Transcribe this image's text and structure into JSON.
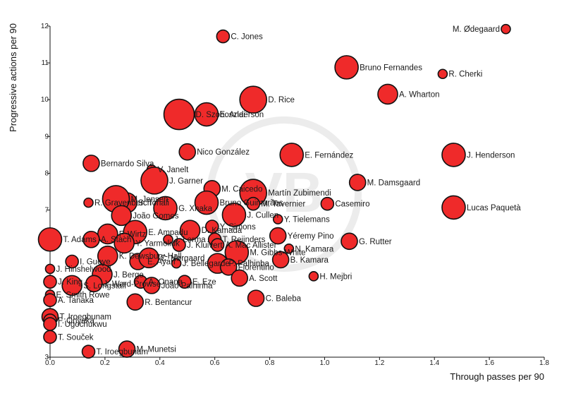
{
  "chart_data": {
    "type": "scatter",
    "title": "",
    "xlabel": "Through passes per 90",
    "ylabel": "Progressive actions per 90",
    "xlim": [
      0.0,
      1.8
    ],
    "ylim": [
      3,
      12
    ],
    "x_ticks": [
      "0.0",
      "0.2",
      "0.4",
      "0.6",
      "0.8",
      "1.0",
      "1.2",
      "1.4",
      "1.6",
      "1.8"
    ],
    "y_ticks": [
      "3",
      "4",
      "5",
      "6",
      "7",
      "8",
      "9",
      "10",
      "11",
      "12"
    ],
    "watermark_text": "VB",
    "points": [
      {
        "name": "M. Ødegaard",
        "x": 1.66,
        "y": 11.92,
        "size": 1
      },
      {
        "name": "C. Jones",
        "x": 0.63,
        "y": 11.72,
        "size": 2
      },
      {
        "name": "Bruno Fernandes",
        "x": 1.08,
        "y": 10.88,
        "size": 5
      },
      {
        "name": "R. Cherki",
        "x": 1.43,
        "y": 10.7,
        "size": 1
      },
      {
        "name": "A. Wharton",
        "x": 1.23,
        "y": 10.15,
        "size": 4
      },
      {
        "name": "D. Rice",
        "x": 0.74,
        "y": 10.0,
        "size": 6
      },
      {
        "name": "D. Szoboszlai",
        "x": 0.47,
        "y": 9.6,
        "size": 7
      },
      {
        "name": "E. Anderson",
        "x": 0.57,
        "y": 9.6,
        "size": 5
      },
      {
        "name": "Nico González",
        "x": 0.5,
        "y": 8.58,
        "size": 3
      },
      {
        "name": "E. Fernández",
        "x": 0.88,
        "y": 8.5,
        "size": 5
      },
      {
        "name": "J. Henderson",
        "x": 1.47,
        "y": 8.5,
        "size": 5
      },
      {
        "name": "Bernardo Silva",
        "x": 0.15,
        "y": 8.27,
        "size": 3
      },
      {
        "name": "V. Janelt",
        "x": 0.37,
        "y": 8.1,
        "size": 1
      },
      {
        "name": "J. Garner",
        "x": 0.38,
        "y": 7.8,
        "size": 6
      },
      {
        "name": "M. Damsgaard",
        "x": 1.12,
        "y": 7.75,
        "size": 3
      },
      {
        "name": "M. Caicedo",
        "x": 0.59,
        "y": 7.58,
        "size": 3
      },
      {
        "name": "Martín Zubimendi",
        "x": 0.74,
        "y": 7.47,
        "size": 6
      },
      {
        "name": "R. Gravenberch",
        "x": 0.14,
        "y": 7.2,
        "size": 1
      },
      {
        "name": "S. Tonali",
        "x": 0.28,
        "y": 7.2,
        "size": 4
      },
      {
        "name": "Bruno Guimarães",
        "x": 0.57,
        "y": 7.2,
        "size": 5
      },
      {
        "name": "M. Tavernier",
        "x": 0.74,
        "y": 7.17,
        "size": 2
      },
      {
        "name": "Casemiro",
        "x": 1.01,
        "y": 7.17,
        "size": 2
      },
      {
        "name": "Lucas Paquetà",
        "x": 1.47,
        "y": 7.07,
        "size": 5
      },
      {
        "name": "M. Jensen",
        "x": 0.24,
        "y": 7.3,
        "size": 6
      },
      {
        "name": "G. Xhaka",
        "x": 0.42,
        "y": 7.05,
        "size": 5
      },
      {
        "name": "João Gomes",
        "x": 0.26,
        "y": 6.85,
        "size": 4
      },
      {
        "name": "J. Cullen",
        "x": 0.67,
        "y": 6.87,
        "size": 5
      },
      {
        "name": "Y. Tielemans",
        "x": 0.83,
        "y": 6.75,
        "size": 1
      },
      {
        "name": "F. Wirtz",
        "x": 0.21,
        "y": 6.35,
        "size": 4
      },
      {
        "name": "E. Ampadu",
        "x": 0.31,
        "y": 6.4,
        "size": 5
      },
      {
        "name": "D. Kamada",
        "x": 0.51,
        "y": 6.45,
        "size": 4
      },
      {
        "name": "Y. Simons",
        "x": 0.59,
        "y": 6.55,
        "size": 2
      },
      {
        "name": "Yéremy Pino",
        "x": 0.83,
        "y": 6.3,
        "size": 3
      },
      {
        "name": "T. Adams",
        "x": 0.0,
        "y": 6.2,
        "size": 5
      },
      {
        "name": "A. Stach",
        "x": 0.15,
        "y": 6.2,
        "size": 3
      },
      {
        "name": "Y. Yarmoliuk",
        "x": 0.27,
        "y": 6.1,
        "size": 4
      },
      {
        "name": "J. Lerma",
        "x": 0.43,
        "y": 6.2,
        "size": 1
      },
      {
        "name": "J. Kluivert",
        "x": 0.47,
        "y": 6.05,
        "size": 2
      },
      {
        "name": "T. Reijnders",
        "x": 0.6,
        "y": 6.2,
        "size": 2
      },
      {
        "name": "A. Mac Allister",
        "x": 0.61,
        "y": 6.05,
        "size": 2
      },
      {
        "name": "G. Rutter",
        "x": 1.09,
        "y": 6.15,
        "size": 3
      },
      {
        "name": "M. Gibbs-White",
        "x": 0.68,
        "y": 5.85,
        "size": 5
      },
      {
        "name": "N. Kamara",
        "x": 0.87,
        "y": 5.95,
        "size": 1
      },
      {
        "name": "K. Dewsbury-Hall",
        "x": 0.21,
        "y": 5.75,
        "size": 4
      },
      {
        "name": "I. Gueye",
        "x": 0.08,
        "y": 5.6,
        "size": 2
      },
      {
        "name": "E. Ayari",
        "x": 0.32,
        "y": 5.6,
        "size": 3
      },
      {
        "name": "C. Nørgaard",
        "x": 0.36,
        "y": 5.7,
        "size": 4
      },
      {
        "name": "J. Hinshelwood",
        "x": 0.0,
        "y": 5.4,
        "size": 1
      },
      {
        "name": "J. Bellegarde",
        "x": 0.46,
        "y": 5.55,
        "size": 1
      },
      {
        "name": "P. Palhinha",
        "x": 0.61,
        "y": 5.55,
        "size": 4
      },
      {
        "name": "Florentino",
        "x": 0.65,
        "y": 5.45,
        "size": 3
      },
      {
        "name": "B. Kamara",
        "x": 0.84,
        "y": 5.65,
        "size": 3
      },
      {
        "name": "J. Berge",
        "x": 0.19,
        "y": 5.25,
        "size": 4
      },
      {
        "name": "H. Mejbri",
        "x": 0.96,
        "y": 5.2,
        "size": 1
      },
      {
        "name": "A. Scott",
        "x": 0.69,
        "y": 5.15,
        "size": 3
      },
      {
        "name": "A. Onana",
        "x": 0.33,
        "y": 5.05,
        "size": 2
      },
      {
        "name": "E. Eze",
        "x": 0.49,
        "y": 5.05,
        "size": 2
      },
      {
        "name": "J. King",
        "x": 0.0,
        "y": 5.05,
        "size": 2
      },
      {
        "name": "S. Longstaff",
        "x": 0.08,
        "y": 4.95,
        "size": 4
      },
      {
        "name": "J. Ward-Prowse",
        "x": 0.16,
        "y": 5.0,
        "size": 3
      },
      {
        "name": "João Palhinha",
        "x": 0.37,
        "y": 4.95,
        "size": 3
      },
      {
        "name": "E. Smith Rowe",
        "x": 0.0,
        "y": 4.7,
        "size": 1
      },
      {
        "name": "A. Tanaka",
        "x": 0.0,
        "y": 4.55,
        "size": 2
      },
      {
        "name": "C. Baleba",
        "x": 0.75,
        "y": 4.6,
        "size": 3
      },
      {
        "name": "R. Bentancur",
        "x": 0.31,
        "y": 4.5,
        "size": 3
      },
      {
        "name": "T. Iroegbunam",
        "x": 0.0,
        "y": 4.1,
        "size": 3
      },
      {
        "name": "F. Onyeka",
        "x": 0.0,
        "y": 4.0,
        "size": 2
      },
      {
        "name": "I. Ugochukwu",
        "x": 0.0,
        "y": 3.9,
        "size": 2
      },
      {
        "name": "T. Souček",
        "x": 0.0,
        "y": 3.55,
        "size": 2
      },
      {
        "name": "M. Munetsi",
        "x": 0.28,
        "y": 3.22,
        "size": 3
      },
      {
        "name": "T. Iroegbunam",
        "x": 0.14,
        "y": 3.15,
        "size": 2
      }
    ]
  }
}
